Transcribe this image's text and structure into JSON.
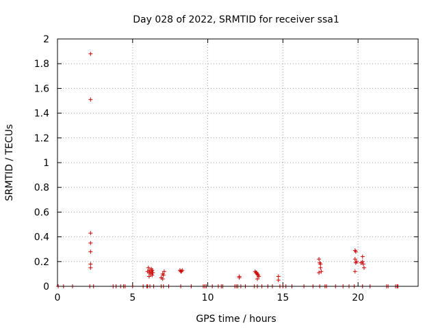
{
  "chart_data": {
    "type": "scatter",
    "title": "Day 028 of 2022, SRMTID for receiver ssa1",
    "xlabel": "GPS time / hours",
    "ylabel": "SRMTID / TECUs",
    "xlim": [
      0,
      24
    ],
    "ylim": [
      0,
      2
    ],
    "xticks": [
      "0",
      "5",
      "10",
      "15",
      "20"
    ],
    "yticks": [
      "0",
      "0.2",
      "0.4",
      "0.6",
      "0.8",
      "1",
      "1.2",
      "1.4",
      "1.6",
      "1.8",
      "2"
    ],
    "grid": true,
    "marker": "plus",
    "color": "#cc0000",
    "points": [
      [
        0.05,
        0
      ],
      [
        0.4,
        0
      ],
      [
        1.0,
        0
      ],
      [
        2.2,
        1.88
      ],
      [
        2.2,
        1.51
      ],
      [
        2.2,
        0.43
      ],
      [
        2.2,
        0.35
      ],
      [
        2.2,
        0.28
      ],
      [
        2.2,
        0.18
      ],
      [
        2.2,
        0.15
      ],
      [
        2.15,
        0
      ],
      [
        2.4,
        0
      ],
      [
        3.7,
        0
      ],
      [
        3.9,
        0
      ],
      [
        4.2,
        0
      ],
      [
        4.4,
        0
      ],
      [
        4.5,
        0
      ],
      [
        5.0,
        0
      ],
      [
        5.7,
        0
      ],
      [
        5.95,
        0
      ],
      [
        6.0,
        0
      ],
      [
        6.05,
        0.15
      ],
      [
        6.15,
        0.13
      ],
      [
        6.25,
        0.12
      ],
      [
        6.1,
        0.11
      ],
      [
        6.2,
        0.1
      ],
      [
        6.3,
        0.09
      ],
      [
        6.0,
        0.12
      ],
      [
        6.1,
        0.08
      ],
      [
        6.25,
        0.14
      ],
      [
        6.35,
        0.11
      ],
      [
        6.3,
        0.13
      ],
      [
        6.15,
        0
      ],
      [
        6.4,
        0
      ],
      [
        6.9,
        0.07
      ],
      [
        7.0,
        0.06
      ],
      [
        7.05,
        0.09
      ],
      [
        7.1,
        0.12
      ],
      [
        7.0,
        0.1
      ],
      [
        6.9,
        0
      ],
      [
        7.05,
        0
      ],
      [
        7.4,
        0
      ],
      [
        8.15,
        0.13
      ],
      [
        8.2,
        0.12
      ],
      [
        8.25,
        0.12
      ],
      [
        8.3,
        0.13
      ],
      [
        8.2,
        0
      ],
      [
        8.9,
        0
      ],
      [
        9.7,
        0
      ],
      [
        9.8,
        0
      ],
      [
        9.9,
        0
      ],
      [
        10.3,
        0
      ],
      [
        10.7,
        0
      ],
      [
        10.9,
        0
      ],
      [
        11.0,
        0
      ],
      [
        11.8,
        0
      ],
      [
        11.9,
        0
      ],
      [
        12.0,
        0
      ],
      [
        12.1,
        0.08
      ],
      [
        12.1,
        0.07
      ],
      [
        12.2,
        0
      ],
      [
        12.5,
        0
      ],
      [
        13.15,
        0.12
      ],
      [
        13.25,
        0.11
      ],
      [
        13.3,
        0.1
      ],
      [
        13.35,
        0.09
      ],
      [
        13.4,
        0.08
      ],
      [
        13.3,
        0.06
      ],
      [
        13.2,
        0.11
      ],
      [
        13.1,
        0
      ],
      [
        13.3,
        0
      ],
      [
        13.6,
        0
      ],
      [
        14.0,
        0
      ],
      [
        14.3,
        0
      ],
      [
        14.7,
        0.08
      ],
      [
        14.7,
        0.05
      ],
      [
        14.8,
        0
      ],
      [
        15.0,
        0
      ],
      [
        15.2,
        0
      ],
      [
        15.6,
        0
      ],
      [
        16.4,
        0
      ],
      [
        17.0,
        0
      ],
      [
        17.4,
        0.22
      ],
      [
        17.45,
        0.19
      ],
      [
        17.5,
        0.18
      ],
      [
        17.5,
        0.15
      ],
      [
        17.55,
        0.12
      ],
      [
        17.4,
        0.11
      ],
      [
        17.45,
        0
      ],
      [
        17.8,
        0
      ],
      [
        17.9,
        0
      ],
      [
        18.5,
        0
      ],
      [
        19.0,
        0
      ],
      [
        19.4,
        0
      ],
      [
        19.8,
        0.29
      ],
      [
        19.85,
        0.28
      ],
      [
        19.8,
        0.22
      ],
      [
        19.85,
        0.19
      ],
      [
        19.9,
        0.2
      ],
      [
        19.8,
        0.12
      ],
      [
        19.75,
        0
      ],
      [
        20.3,
        0.24
      ],
      [
        20.3,
        0.2
      ],
      [
        20.35,
        0.18
      ],
      [
        20.4,
        0.15
      ],
      [
        20.2,
        0.19
      ],
      [
        20.3,
        0
      ],
      [
        20.8,
        0
      ],
      [
        21.9,
        0
      ],
      [
        22.0,
        0
      ],
      [
        22.5,
        0
      ],
      [
        22.6,
        0
      ],
      [
        22.65,
        0
      ]
    ]
  }
}
